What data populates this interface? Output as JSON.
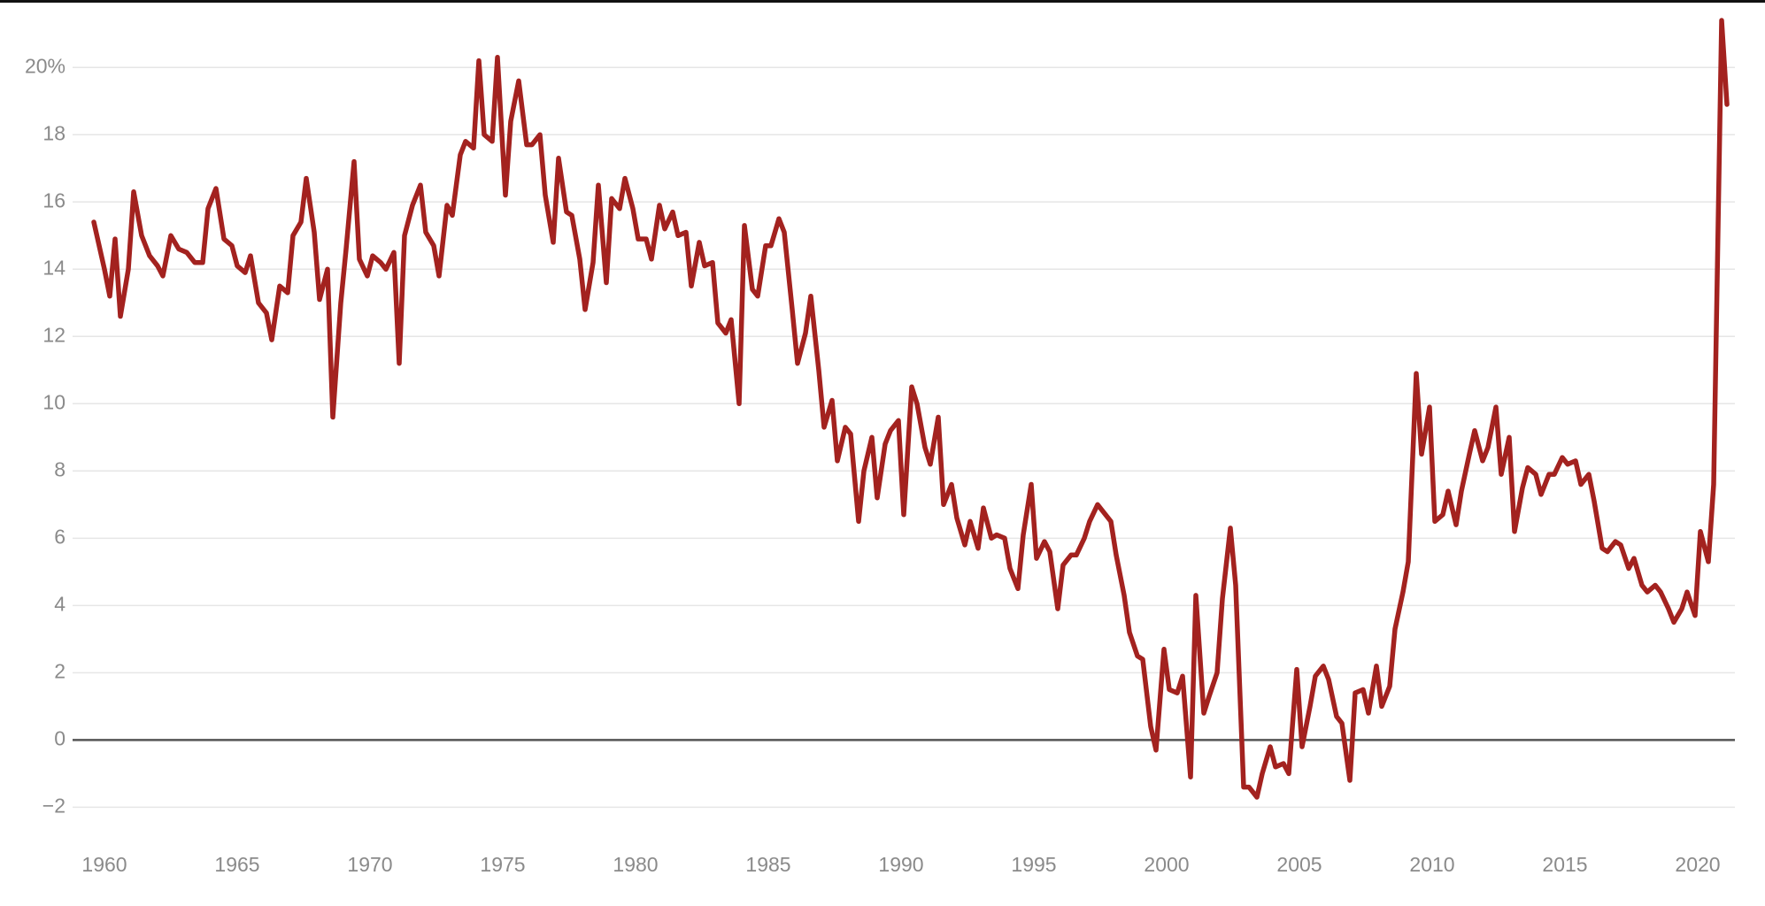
{
  "chart_data": {
    "type": "line",
    "color": "#a3221f",
    "grid": true,
    "xlim": [
      1958.8,
      2021.4
    ],
    "ylim": [
      -2.7,
      21.4
    ],
    "xticks": [
      1960,
      1965,
      1970,
      1975,
      1980,
      1985,
      1990,
      1995,
      2000,
      2005,
      2010,
      2015,
      2020
    ],
    "yticks": [
      {
        "value": -2,
        "label": "−2"
      },
      0,
      2,
      4,
      6,
      8,
      10,
      12,
      14,
      16,
      18,
      {
        "value": 20,
        "label": "20%"
      }
    ],
    "x": [
      1959.6,
      1960.0,
      1960.2,
      1960.4,
      1960.6,
      1960.9,
      1961.1,
      1961.4,
      1961.7,
      1962.0,
      1962.2,
      1962.5,
      1962.8,
      1963.1,
      1963.4,
      1963.7,
      1963.9,
      1964.2,
      1964.5,
      1964.8,
      1965.0,
      1965.3,
      1965.5,
      1965.8,
      1966.1,
      1966.3,
      1966.6,
      1966.9,
      1967.1,
      1967.4,
      1967.6,
      1967.9,
      1968.1,
      1968.4,
      1968.6,
      1968.9,
      1969.1,
      1969.4,
      1969.6,
      1969.9,
      1970.1,
      1970.4,
      1970.6,
      1970.9,
      1971.1,
      1971.3,
      1971.6,
      1971.9,
      1972.1,
      1972.4,
      1972.6,
      1972.9,
      1973.1,
      1973.4,
      1973.6,
      1973.9,
      1974.1,
      1974.3,
      1974.6,
      1974.8,
      1975.1,
      1975.3,
      1975.6,
      1975.9,
      1976.1,
      1976.4,
      1976.6,
      1976.9,
      1977.1,
      1977.4,
      1977.6,
      1977.9,
      1978.1,
      1978.4,
      1978.6,
      1978.9,
      1979.1,
      1979.4,
      1979.6,
      1979.9,
      1980.1,
      1980.4,
      1980.6,
      1980.9,
      1981.1,
      1981.4,
      1981.6,
      1981.9,
      1982.1,
      1982.4,
      1982.6,
      1982.9,
      1983.1,
      1983.4,
      1983.6,
      1983.9,
      1984.1,
      1984.4,
      1984.6,
      1984.9,
      1985.1,
      1985.4,
      1985.6,
      1985.9,
      1986.1,
      1986.4,
      1986.6,
      1986.9,
      1987.1,
      1987.4,
      1987.6,
      1987.9,
      1988.1,
      1988.4,
      1988.6,
      1988.9,
      1989.1,
      1989.4,
      1989.6,
      1989.9,
      1990.1,
      1990.4,
      1990.6,
      1990.9,
      1991.1,
      1991.4,
      1991.6,
      1991.9,
      1992.1,
      1992.4,
      1992.6,
      1992.9,
      1993.1,
      1993.4,
      1993.6,
      1993.9,
      1994.1,
      1994.4,
      1994.6,
      1994.9,
      1995.1,
      1995.4,
      1995.6,
      1995.9,
      1996.1,
      1996.4,
      1996.6,
      1996.9,
      1997.1,
      1997.4,
      1997.6,
      1997.9,
      1998.1,
      1998.4,
      1998.6,
      1998.9,
      1999.1,
      1999.4,
      1999.6,
      1999.9,
      2000.1,
      2000.4,
      2000.6,
      2000.9,
      2001.1,
      2001.4,
      2001.6,
      2001.9,
      2002.1,
      2002.4,
      2002.6,
      2002.9,
      2003.1,
      2003.4,
      2003.6,
      2003.9,
      2004.1,
      2004.4,
      2004.6,
      2004.9,
      2005.1,
      2005.4,
      2005.6,
      2005.9,
      2006.1,
      2006.4,
      2006.6,
      2006.9,
      2007.1,
      2007.4,
      2007.6,
      2007.9,
      2008.1,
      2008.4,
      2008.6,
      2008.9,
      2009.1,
      2009.4,
      2009.6,
      2009.9,
      2010.1,
      2010.4,
      2010.6,
      2010.9,
      2011.1,
      2011.4,
      2011.6,
      2011.9,
      2012.1,
      2012.4,
      2012.6,
      2012.9,
      2013.1,
      2013.4,
      2013.6,
      2013.9,
      2014.1,
      2014.4,
      2014.6,
      2014.9,
      2015.1,
      2015.4,
      2015.6,
      2015.9,
      2016.1,
      2016.4,
      2016.6,
      2016.9,
      2017.1,
      2017.4,
      2017.6,
      2017.9,
      2018.1,
      2018.4,
      2018.6,
      2018.9,
      2019.1,
      2019.4,
      2019.6,
      2019.9,
      2020.1,
      2020.4,
      2020.6,
      2020.9,
      2021.1
    ],
    "values": [
      15.4,
      14.0,
      13.2,
      14.9,
      12.6,
      14.0,
      16.3,
      15.0,
      14.4,
      14.1,
      13.8,
      15.0,
      14.6,
      14.5,
      14.2,
      14.2,
      15.8,
      16.4,
      14.9,
      14.7,
      14.1,
      13.9,
      14.4,
      13.0,
      12.7,
      11.9,
      13.5,
      13.3,
      15.0,
      15.4,
      16.7,
      15.1,
      13.1,
      14.0,
      9.6,
      13.0,
      14.6,
      17.2,
      14.3,
      13.8,
      14.4,
      14.2,
      14.0,
      14.5,
      11.2,
      15.0,
      15.9,
      16.5,
      15.1,
      14.7,
      13.8,
      15.9,
      15.6,
      17.4,
      17.8,
      17.6,
      20.2,
      18.0,
      17.8,
      20.3,
      16.2,
      18.4,
      19.6,
      17.7,
      17.7,
      18.0,
      16.2,
      14.8,
      17.3,
      15.7,
      15.6,
      14.3,
      12.8,
      14.2,
      16.5,
      13.6,
      16.1,
      15.8,
      16.7,
      15.8,
      14.9,
      14.9,
      14.3,
      15.9,
      15.2,
      15.7,
      15.0,
      15.1,
      13.5,
      14.8,
      14.1,
      14.2,
      12.4,
      12.1,
      12.5,
      10.0,
      15.3,
      13.4,
      13.2,
      14.7,
      14.7,
      15.5,
      15.1,
      12.8,
      11.2,
      12.1,
      13.2,
      11.0,
      9.3,
      10.1,
      8.3,
      9.3,
      9.1,
      6.5,
      8.0,
      9.0,
      7.2,
      8.8,
      9.2,
      9.5,
      6.7,
      10.5,
      10.0,
      8.7,
      8.2,
      9.6,
      7.0,
      7.6,
      6.6,
      5.8,
      6.5,
      5.7,
      6.9,
      6.0,
      6.1,
      6.0,
      5.1,
      4.5,
      6.1,
      7.6,
      5.4,
      5.9,
      5.6,
      3.9,
      5.2,
      5.5,
      5.5,
      6.0,
      6.5,
      7.0,
      6.8,
      6.5,
      5.5,
      4.3,
      3.2,
      2.5,
      2.4,
      0.4,
      -0.3,
      2.7,
      1.5,
      1.4,
      1.9,
      -1.1,
      4.3,
      0.8,
      1.3,
      2.0,
      4.2,
      6.3,
      4.6,
      -1.4,
      -1.4,
      -1.7,
      -1.0,
      -0.2,
      -0.8,
      -0.7,
      -1.0,
      2.1,
      -0.2,
      1.0,
      1.9,
      2.2,
      1.8,
      0.7,
      0.5,
      -1.2,
      1.4,
      1.5,
      0.8,
      2.2,
      1.0,
      1.6,
      3.3,
      4.4,
      5.3,
      10.9,
      8.5,
      9.9,
      6.5,
      6.7,
      7.4,
      6.4,
      7.4,
      8.5,
      9.2,
      8.3,
      8.7,
      9.9,
      7.9,
      9.0,
      6.2,
      7.5,
      8.1,
      7.9,
      7.3,
      7.9,
      7.9,
      8.4,
      8.2,
      8.3,
      7.6,
      7.9,
      7.1,
      5.7,
      5.6,
      5.9,
      5.8,
      5.1,
      5.4,
      4.6,
      4.4,
      4.6,
      4.4,
      3.9,
      3.5,
      3.9,
      4.4,
      3.7,
      6.2,
      5.3,
      7.6,
      21.4,
      18.9
    ]
  }
}
